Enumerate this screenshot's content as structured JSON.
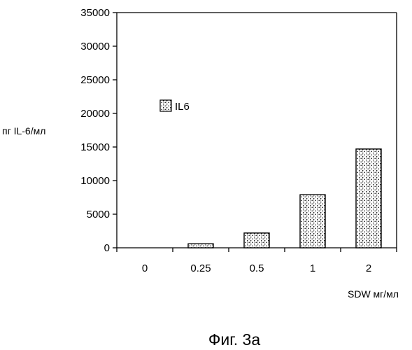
{
  "chart_data": {
    "type": "bar",
    "categories": [
      "0",
      "0.25",
      "0.5",
      "1",
      "2"
    ],
    "series": [
      {
        "name": "IL6",
        "values": [
          0,
          600,
          2200,
          7900,
          14700
        ]
      }
    ],
    "ylabel": "пг IL-6/мл",
    "xlabel": "SDW мг/мл",
    "ylim": [
      0,
      35000
    ],
    "yticks": [
      0,
      5000,
      10000,
      15000,
      20000,
      25000,
      30000,
      35000
    ],
    "grid": false,
    "legend_position": "left",
    "bar_fill": "stippled"
  },
  "caption": "Фиг. 3а"
}
